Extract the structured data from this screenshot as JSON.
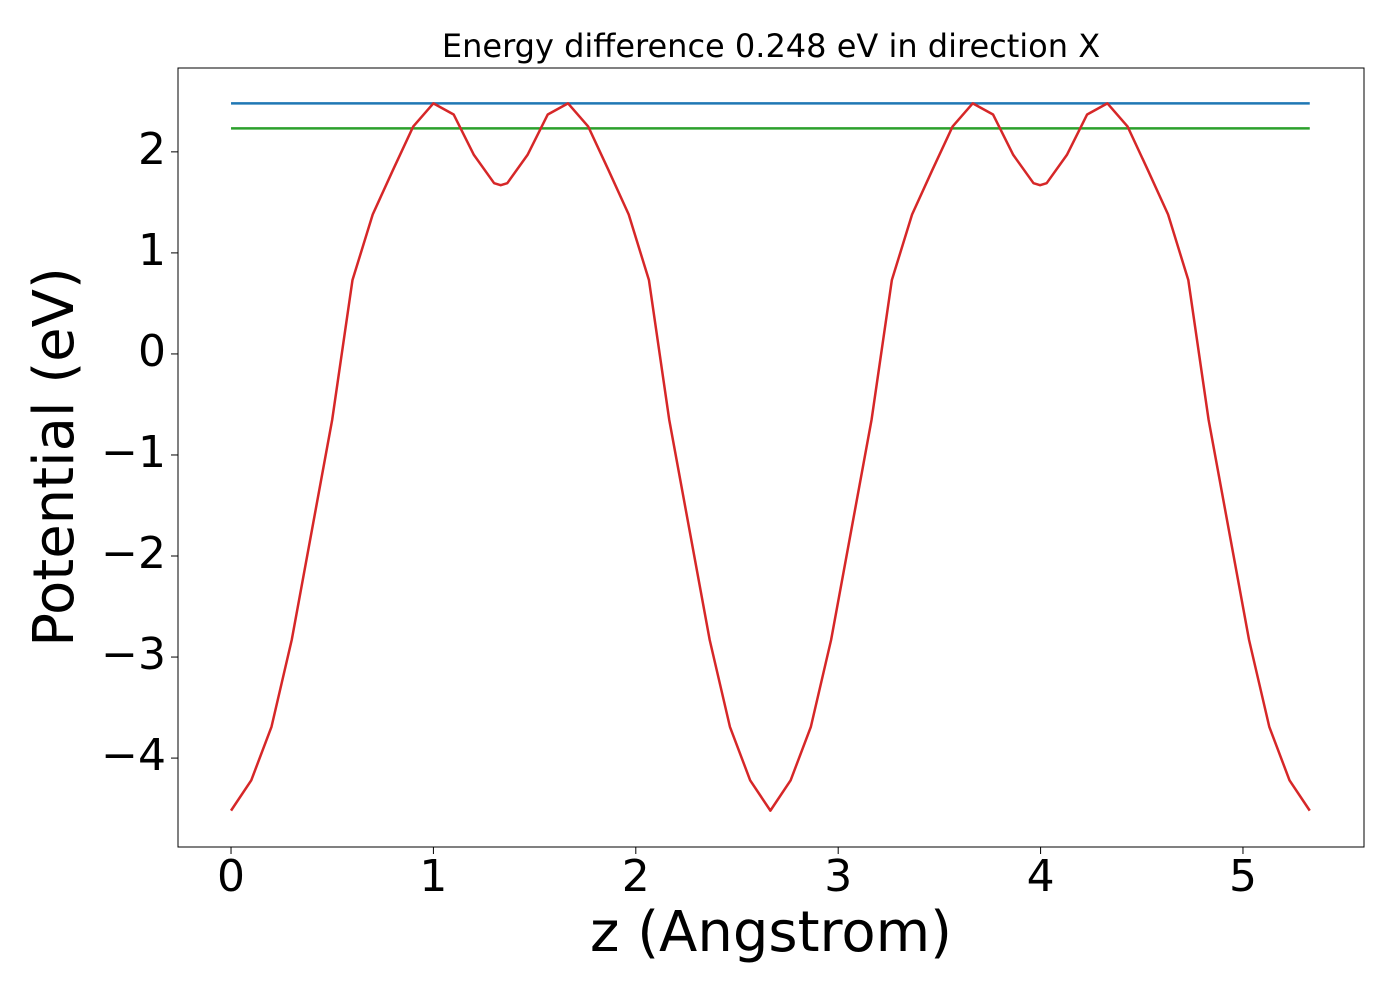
{
  "chart_data": {
    "type": "line",
    "title": "Energy difference 0.248 eV in direction X",
    "xlabel": "z (Angstrom)",
    "ylabel": "Potential (eV)",
    "xlim": [
      -0.262,
      5.598
    ],
    "ylim": [
      -4.88,
      2.83
    ],
    "xticks": [
      0,
      1,
      2,
      3,
      4,
      5
    ],
    "yticks": [
      {
        "value": -4,
        "label": "−4"
      },
      {
        "value": -3,
        "label": "−3"
      },
      {
        "value": -2,
        "label": "−2"
      },
      {
        "value": -1,
        "label": "−1"
      },
      0,
      1,
      2
    ],
    "grid": false,
    "series": [
      {
        "color": "#1f77b4",
        "x": [
          0,
          5.33
        ],
        "values": [
          2.48,
          2.48
        ]
      },
      {
        "color": "#2ca02c",
        "x": [
          0,
          5.33
        ],
        "values": [
          2.232,
          2.232
        ]
      },
      {
        "color": "#d62728",
        "x": [
          0,
          0.1,
          0.2,
          0.3,
          0.4,
          0.5,
          0.6,
          0.7,
          0.8,
          0.9,
          1.0,
          1.1,
          1.2,
          1.3,
          1.3325,
          1.365,
          1.465,
          1.565,
          1.665,
          1.765,
          1.865,
          1.965,
          2.065,
          2.165,
          2.265,
          2.365,
          2.465,
          2.565,
          2.665,
          2.765,
          2.865,
          2.965,
          3.065,
          3.165,
          3.265,
          3.365,
          3.465,
          3.565,
          3.665,
          3.765,
          3.865,
          3.965,
          3.9975,
          4.03,
          4.13,
          4.23,
          4.33,
          4.43,
          4.53,
          4.63,
          4.73,
          4.83,
          4.93,
          5.03,
          5.13,
          5.23,
          5.33
        ],
        "values": [
          -4.52,
          -4.22,
          -3.69,
          -2.83,
          -1.74,
          -0.65,
          0.73,
          1.38,
          1.82,
          2.25,
          2.48,
          2.37,
          1.97,
          1.69,
          1.67,
          1.69,
          1.97,
          2.37,
          2.48,
          2.25,
          1.82,
          1.38,
          0.73,
          -0.65,
          -1.74,
          -2.83,
          -3.69,
          -4.22,
          -4.52,
          -4.22,
          -3.69,
          -2.83,
          -1.74,
          -0.65,
          0.73,
          1.38,
          1.82,
          2.25,
          2.48,
          2.37,
          1.97,
          1.69,
          1.67,
          1.69,
          1.97,
          2.37,
          2.48,
          2.25,
          1.82,
          1.38,
          0.73,
          -0.65,
          -1.74,
          -2.83,
          -3.69,
          -4.22,
          -4.52
        ]
      }
    ]
  }
}
